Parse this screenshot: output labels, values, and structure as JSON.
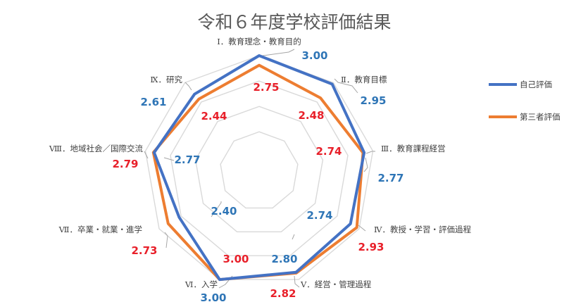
{
  "chart_data": {
    "type": "radar",
    "title": "令和６年度学校評価結果",
    "categories": [
      "Ⅰ．教育理念・教育目的",
      "Ⅱ．教育目標",
      "Ⅲ．教育課程経営",
      "Ⅳ．教授・学習・評価過程",
      "Ⅴ．経営・管理過程",
      "Ⅵ．入学",
      "Ⅶ．卒業・就業・進学",
      "Ⅷ．地域社会／国際交流",
      "Ⅸ．研究"
    ],
    "series": [
      {
        "name": "自己評価",
        "color": "#4472C4",
        "label_color": "#2E75B6",
        "values": [
          3.0,
          2.95,
          2.77,
          2.74,
          2.8,
          3.0,
          2.4,
          2.77,
          2.61
        ],
        "labels": [
          "3.00",
          "2.95",
          "2.77",
          "2.74",
          "2.80",
          "3.00",
          "2.40",
          "2.77",
          "2.61"
        ]
      },
      {
        "name": "第三者評価",
        "color": "#ED7D31",
        "label_color": "#E8202A",
        "values": [
          2.75,
          2.48,
          2.74,
          2.93,
          2.82,
          3.0,
          2.73,
          2.79,
          2.44
        ],
        "labels": [
          "2.75",
          "2.48",
          "2.74",
          "2.93",
          "2.82",
          "3.00",
          "2.73",
          "2.79",
          "2.44"
        ]
      }
    ],
    "rlim": [
      0,
      3
    ],
    "grid": true,
    "legend": "right"
  }
}
